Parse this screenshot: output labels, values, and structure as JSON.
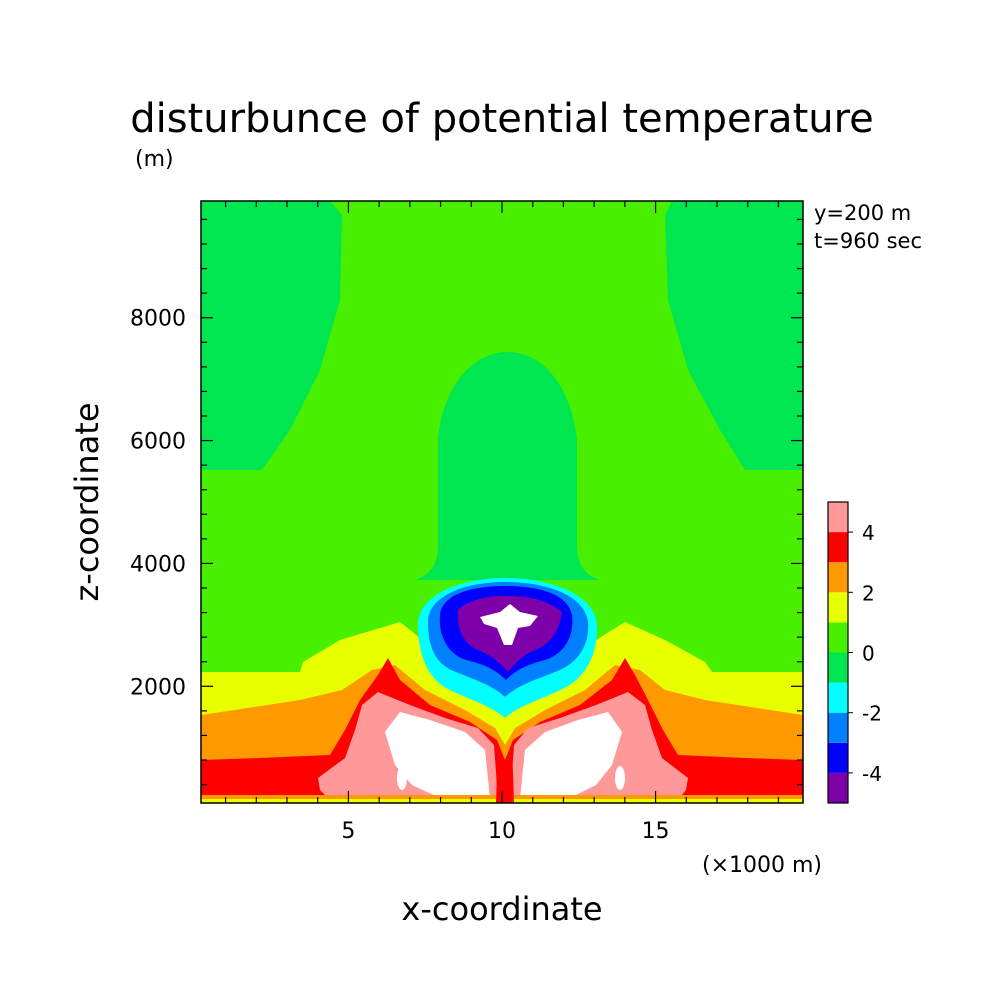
{
  "chart_data": {
    "type": "heatmap",
    "title": "disturbunce of potential temperature",
    "ylabel": "z-coordinate",
    "yunit": "(m)",
    "xlabel": "x-coordinate",
    "xunit": "(×1000 m)",
    "annotations": [
      "y=200 m",
      "t=960 sec"
    ],
    "xlim": [
      0.2,
      19.8
    ],
    "ylim": [
      100,
      9900
    ],
    "xticks": [
      5,
      10,
      15
    ],
    "yticks": [
      2000,
      4000,
      6000,
      8000
    ],
    "grid": false,
    "colorbar": {
      "levels": [
        -5,
        -4,
        -3,
        -2,
        -1,
        0,
        1,
        2,
        3,
        4,
        5
      ],
      "tick_labels": [
        "-4",
        "-2",
        "0",
        "2",
        "4"
      ],
      "tick_values": [
        -4,
        -2,
        0,
        2,
        4
      ],
      "colors": [
        "#7d00a8",
        "#0000ff",
        "#0080ff",
        "#00ffff",
        "#00e650",
        "#48f000",
        "#e8ff00",
        "#ff9900",
        "#ff0000",
        "#ff9999"
      ],
      "above_color": "#ffffff",
      "below_color": "#ffffff"
    }
  }
}
